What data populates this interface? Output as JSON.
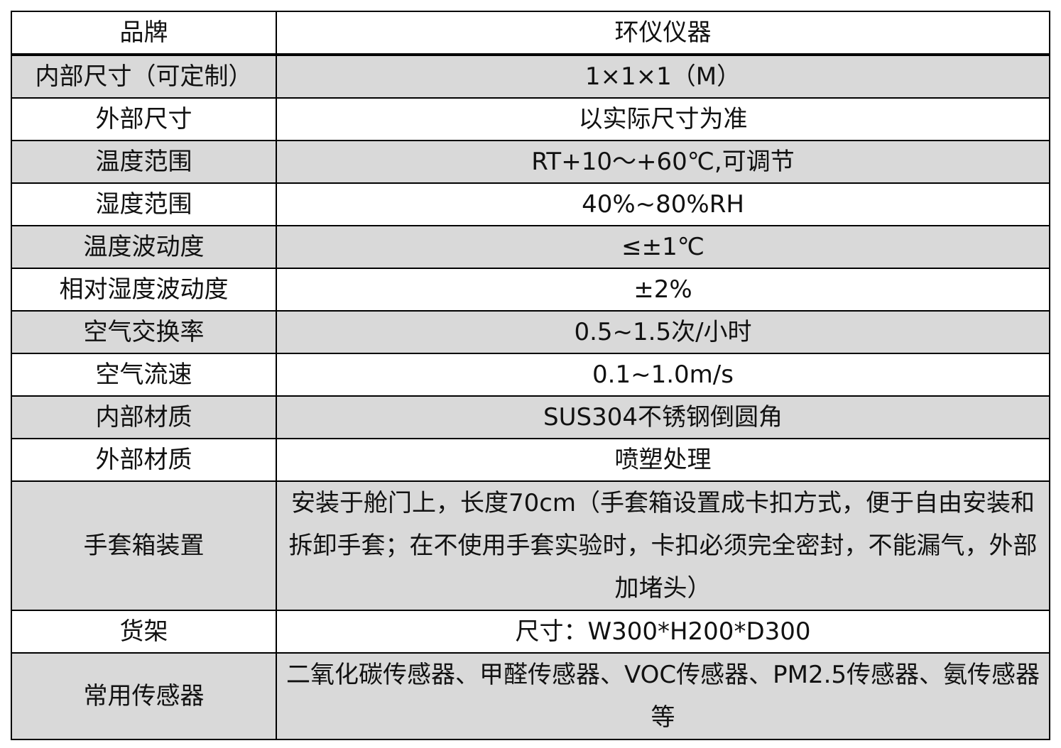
{
  "table": {
    "rows": [
      {
        "key": "品牌",
        "value": "环仪仪器",
        "shaded": false
      },
      {
        "key": "内部尺寸（可定制）",
        "value": "1×1×1（M）",
        "shaded": true
      },
      {
        "key": "外部尺寸",
        "value": "以实际尺寸为准",
        "shaded": false
      },
      {
        "key": "温度范围",
        "value": "RT+10～+60℃,可调节",
        "shaded": true
      },
      {
        "key": "湿度范围",
        "value": "40%~80%RH",
        "shaded": false
      },
      {
        "key": "温度波动度",
        "value": "≤±1℃",
        "shaded": true
      },
      {
        "key": "相对湿度波动度",
        "value": "±2%",
        "shaded": false
      },
      {
        "key": "空气交换率",
        "value": "0.5~1.5次/小时",
        "shaded": true
      },
      {
        "key": "空气流速",
        "value": "0.1~1.0m/s",
        "shaded": false
      },
      {
        "key": "内部材质",
        "value": "SUS304不锈钢倒圆角",
        "shaded": true
      },
      {
        "key": "外部材质",
        "value": "喷塑处理",
        "shaded": false
      },
      {
        "key": "手套箱装置",
        "value": "安装于舱门上，长度70cm（手套箱设置成卡扣方式，便于自由安装和拆卸手套；在不使用手套实验时，卡扣必须完全密封，不能漏气，外部加堵头）",
        "shaded": true
      },
      {
        "key": "货架",
        "value": "尺寸：W300*H200*D300",
        "shaded": false
      },
      {
        "key": "常用传感器",
        "value": "二氧化碳传感器、甲醛传感器、VOC传感器、PM2.5传感器、氨传感器等",
        "shaded": true
      }
    ],
    "shade_color": "#d9d9d9"
  }
}
